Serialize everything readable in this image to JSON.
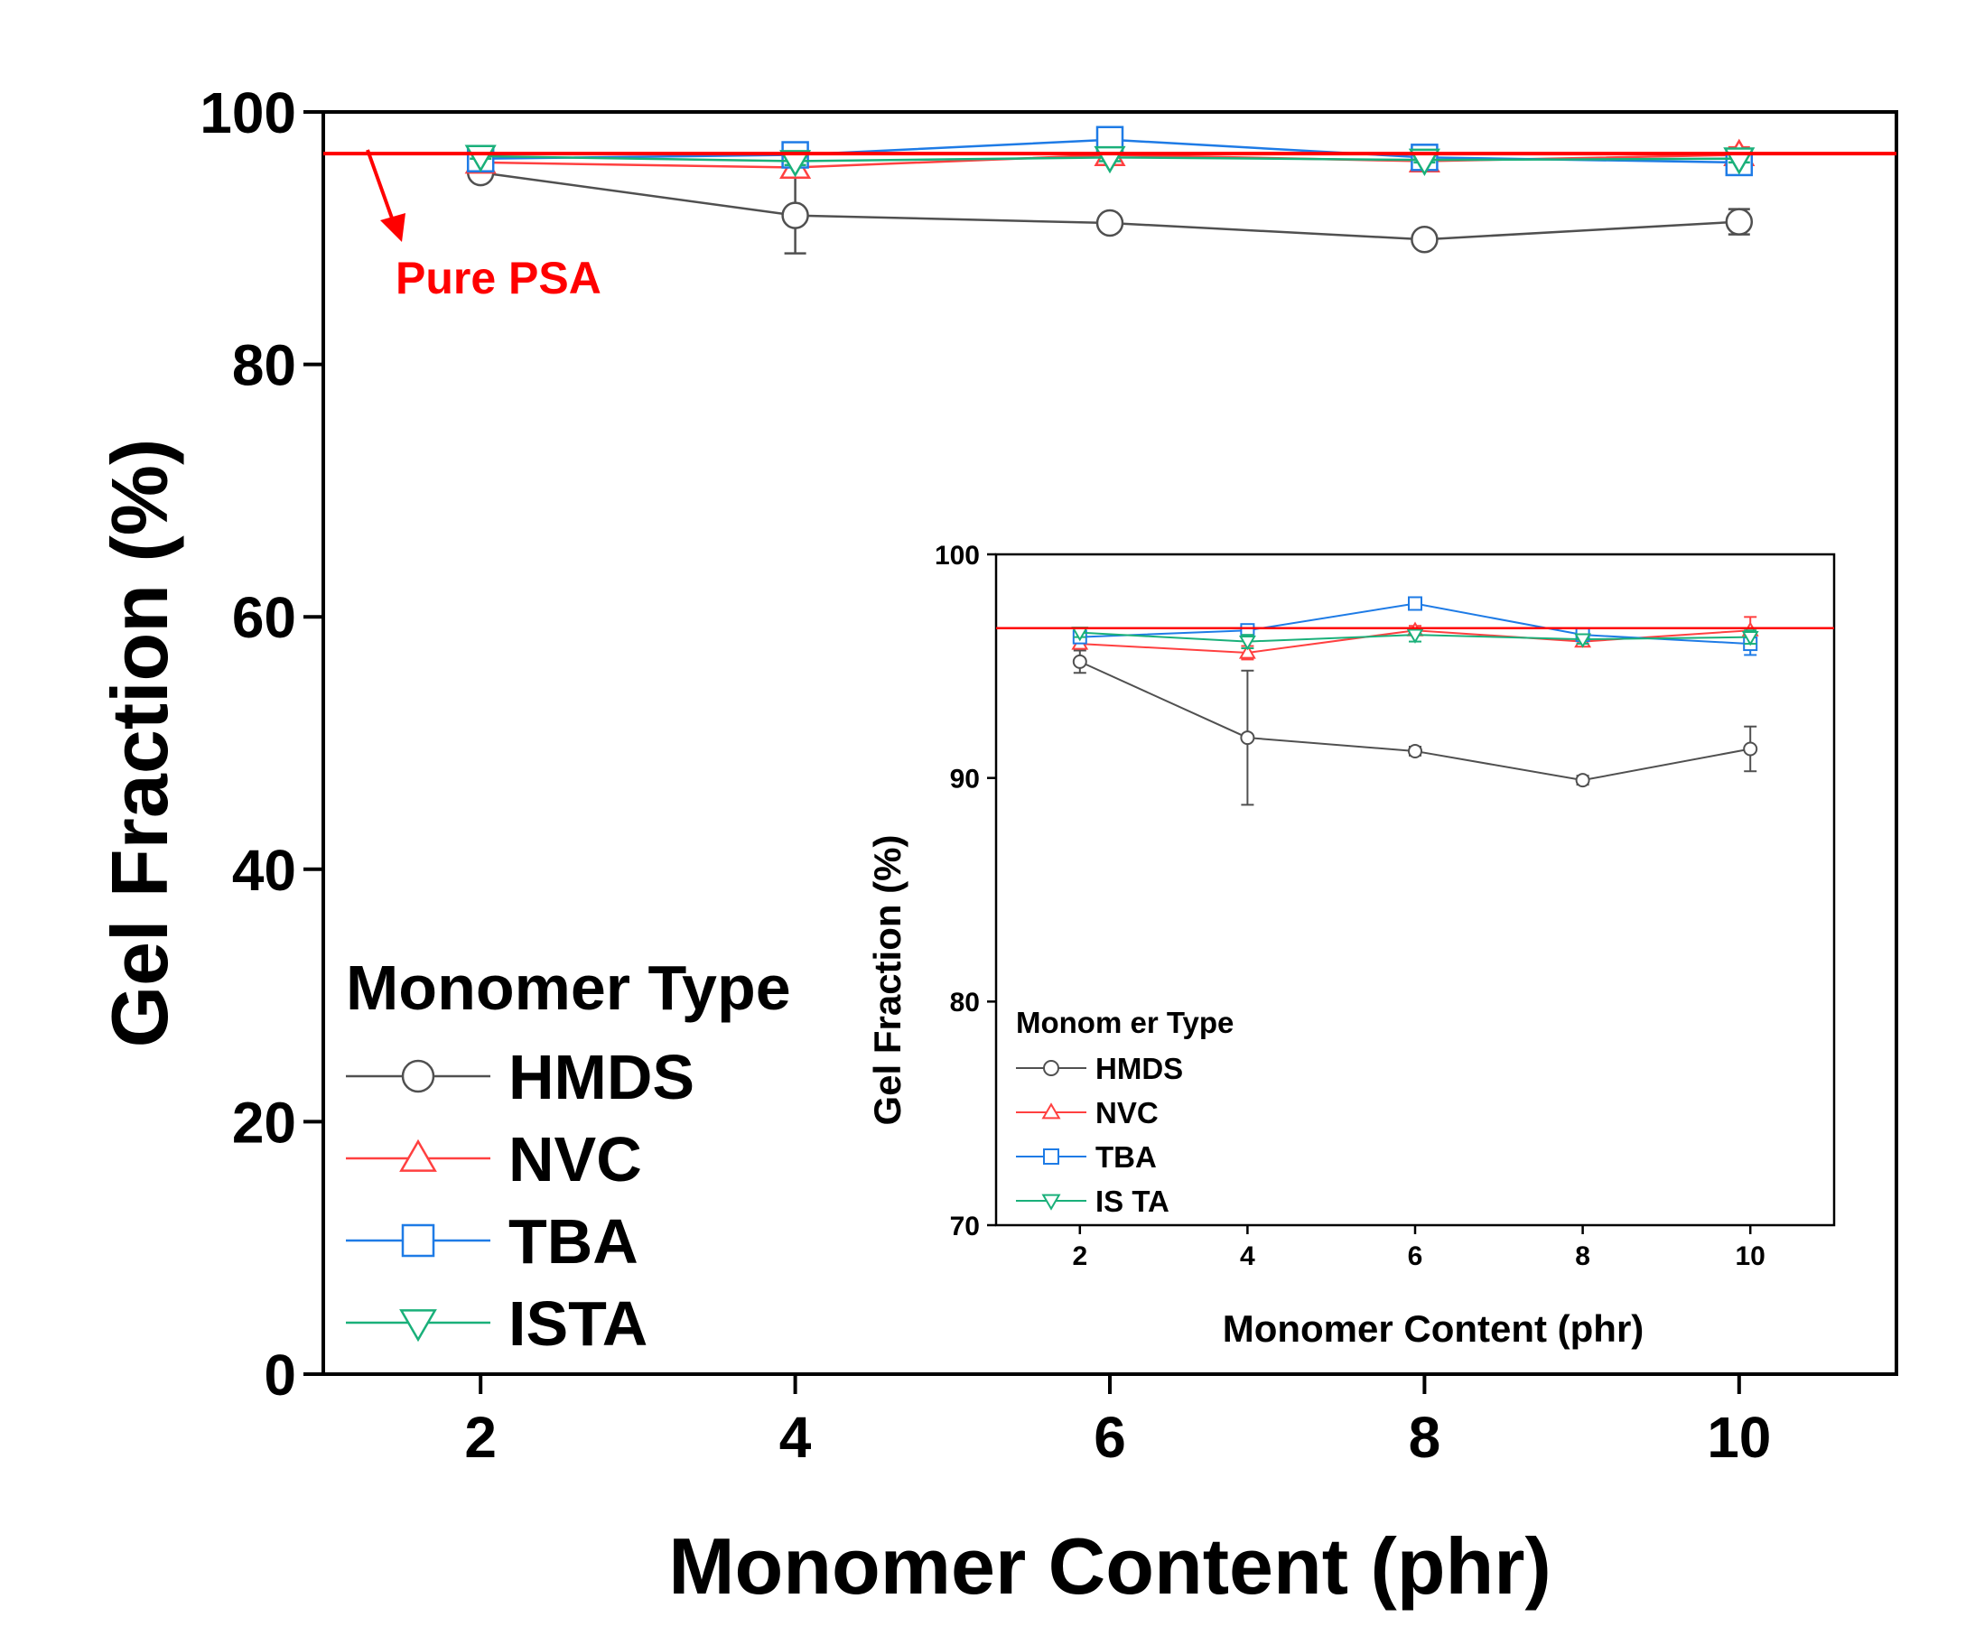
{
  "chart_data": [
    {
      "type": "line",
      "xlabel": "Monomer Content (phr)",
      "ylabel": "Gel Fraction (%)",
      "xlim": [
        1,
        11
      ],
      "ylim": [
        0,
        100
      ],
      "xticks": [
        "2",
        "4",
        "6",
        "8",
        "10"
      ],
      "yticks": [
        "0",
        "20",
        "40",
        "60",
        "80",
        "100"
      ],
      "grid": false,
      "legend": {
        "title": "Monomer Type",
        "position": "bottom-left"
      },
      "reference_line": {
        "y": 96.7,
        "color": "#ff0000",
        "label": "Pure PSA"
      },
      "x": [
        2,
        4,
        6,
        8,
        10
      ],
      "series": [
        {
          "name": "HMDS",
          "marker": "circle",
          "color": "#505050",
          "values": [
            95.2,
            91.8,
            91.2,
            89.9,
            91.3
          ],
          "errors": [
            0.5,
            3.0,
            0.2,
            0.2,
            1.0
          ]
        },
        {
          "name": "NVC",
          "marker": "triangle-up",
          "color": "#ff4040",
          "values": [
            96.0,
            95.6,
            96.6,
            96.1,
            96.6
          ],
          "errors": [
            0.2,
            0.3,
            0.2,
            0.2,
            0.6
          ]
        },
        {
          "name": "TBA",
          "marker": "square",
          "color": "#1e7be6",
          "values": [
            96.3,
            96.6,
            97.8,
            96.4,
            96.0
          ],
          "errors": [
            0.2,
            0.2,
            0.2,
            0.2,
            0.5
          ]
        },
        {
          "name": "ISTA",
          "marker": "triangle-down",
          "color": "#1ab07a",
          "values": [
            96.5,
            96.1,
            96.4,
            96.2,
            96.3
          ],
          "errors": [
            0.2,
            0.3,
            0.3,
            0.2,
            0.3
          ]
        }
      ]
    },
    {
      "type": "line",
      "inset": true,
      "xlabel": "Monomer Content (phr)",
      "ylabel": "Gel Fraction (%)",
      "xlim": [
        1,
        11
      ],
      "ylim": [
        70,
        100
      ],
      "xticks": [
        "2",
        "4",
        "6",
        "8",
        "10"
      ],
      "yticks": [
        "70",
        "80",
        "90",
        "100"
      ],
      "grid": false,
      "legend": {
        "title": "Monom er Type",
        "position": "bottom-left"
      },
      "reference_line": {
        "y": 96.7,
        "color": "#ff0000"
      },
      "x": [
        2,
        4,
        6,
        8,
        10
      ],
      "series": [
        {
          "name": "HMDS",
          "marker": "circle",
          "color": "#505050",
          "values": [
            95.2,
            91.8,
            91.2,
            89.9,
            91.3
          ],
          "errors": [
            0.5,
            3.0,
            0.2,
            0.2,
            1.0
          ]
        },
        {
          "name": "NVC",
          "marker": "triangle-up",
          "color": "#ff4040",
          "values": [
            96.0,
            95.6,
            96.6,
            96.1,
            96.6
          ],
          "errors": [
            0.2,
            0.3,
            0.2,
            0.2,
            0.6
          ]
        },
        {
          "name": "TBA",
          "marker": "square",
          "color": "#1e7be6",
          "values": [
            96.3,
            96.6,
            97.8,
            96.4,
            96.0
          ],
          "errors": [
            0.2,
            0.2,
            0.2,
            0.2,
            0.5
          ]
        },
        {
          "name": "ISTA",
          "marker": "triangle-down",
          "color": "#1ab07a",
          "values": [
            96.5,
            96.1,
            96.4,
            96.2,
            96.3
          ],
          "errors": [
            0.2,
            0.3,
            0.3,
            0.2,
            0.3
          ]
        }
      ],
      "legend_names": [
        "HMDS",
        "NVC",
        "TBA",
        "IS TA"
      ]
    }
  ]
}
